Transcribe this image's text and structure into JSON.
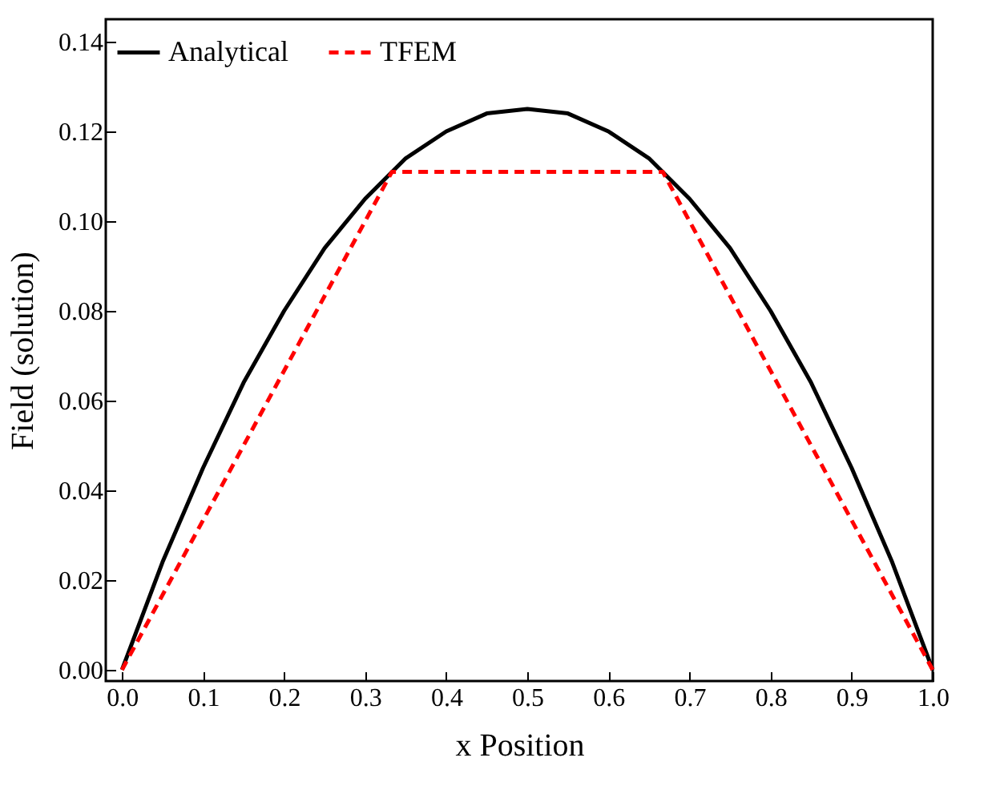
{
  "chart_data": {
    "type": "line",
    "xlabel": "x Position",
    "ylabel": "Field (solution)",
    "xlim": [
      -0.02,
      1.0
    ],
    "ylim": [
      -0.0025,
      0.145
    ],
    "xticks": [
      {
        "value": 0,
        "label": "0.0"
      },
      {
        "value": 0.1,
        "label": "0.1"
      },
      {
        "value": 0.2,
        "label": "0.2"
      },
      {
        "value": 0.3,
        "label": "0.3"
      },
      {
        "value": 0.4,
        "label": "0.4"
      },
      {
        "value": 0.5,
        "label": "0.5"
      },
      {
        "value": 0.6,
        "label": "0.6"
      },
      {
        "value": 0.7,
        "label": "0.7"
      },
      {
        "value": 0.8,
        "label": "0.8"
      },
      {
        "value": 0.9,
        "label": "0.9"
      },
      {
        "value": 1,
        "label": "1.0"
      }
    ],
    "yticks": [
      {
        "value": 0,
        "label": "0.00"
      },
      {
        "value": 0.02,
        "label": "0.02"
      },
      {
        "value": 0.04,
        "label": "0.04"
      },
      {
        "value": 0.06,
        "label": "0.06"
      },
      {
        "value": 0.08,
        "label": "0.08"
      },
      {
        "value": 0.1,
        "label": "0.10"
      },
      {
        "value": 0.12,
        "label": "0.12"
      },
      {
        "value": 0.14,
        "label": "0.14"
      }
    ],
    "grid": false,
    "legend": "top left",
    "marker": "none",
    "series": [
      {
        "name": "Analytical",
        "color": "#000000",
        "line_style": "solid",
        "x": [
          0,
          0.05,
          0.1,
          0.15,
          0.2,
          0.25,
          0.3,
          0.35,
          0.4,
          0.45,
          0.5,
          0.55,
          0.6,
          0.65,
          0.7,
          0.75,
          0.8,
          0.85,
          0.9,
          0.95,
          1
        ],
        "values": [
          0,
          0.024,
          0.045,
          0.064,
          0.08,
          0.094,
          0.105,
          0.114,
          0.12,
          0.124,
          0.125,
          0.124,
          0.12,
          0.114,
          0.105,
          0.094,
          0.08,
          0.064,
          0.045,
          0.024,
          0
        ]
      },
      {
        "name": "TFEM",
        "color": "#ff0000",
        "line_style": "dashed",
        "x": [
          0,
          0.333,
          0.667,
          1
        ],
        "values": [
          0,
          0.111,
          0.111,
          0
        ]
      }
    ]
  }
}
